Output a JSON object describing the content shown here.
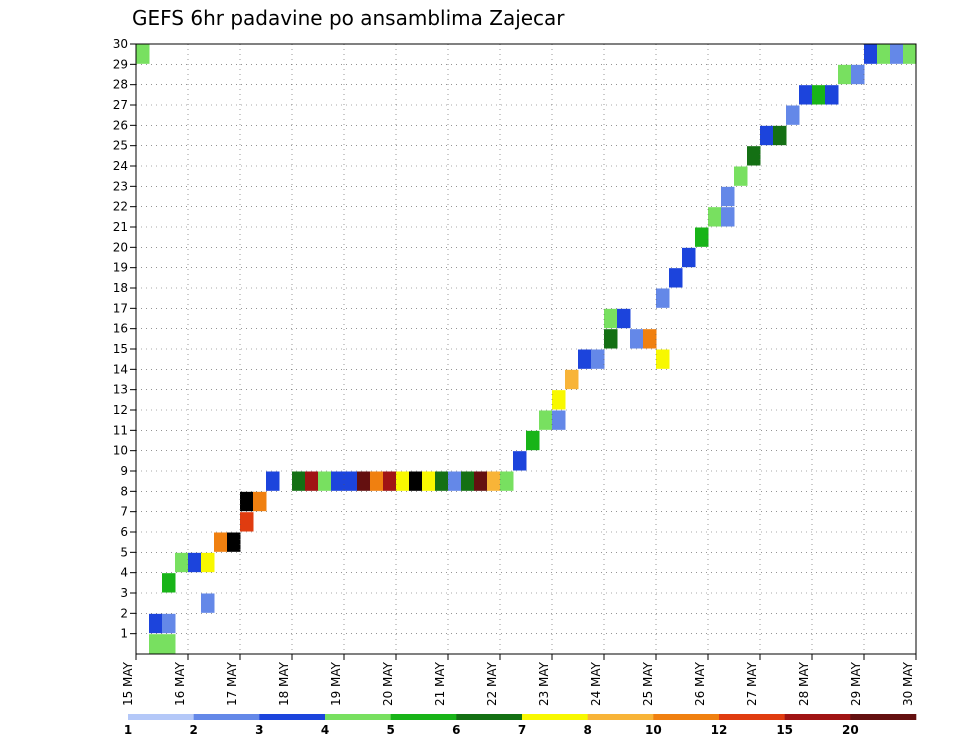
{
  "chart_data": {
    "type": "heatmap",
    "title": "GEFS 6hr padavine po ansamblima Zajecar",
    "xlabel": "",
    "ylabel": "",
    "x_tick_labels": [
      "15 MAY",
      "16 MAY",
      "17 MAY",
      "18 MAY",
      "19 MAY",
      "20 MAY",
      "21 MAY",
      "22 MAY",
      "23 MAY",
      "24 MAY",
      "25 MAY",
      "26 MAY",
      "27 MAY",
      "28 MAY",
      "29 MAY",
      "30 MAY"
    ],
    "y_tick_labels": [
      "1",
      "2",
      "3",
      "4",
      "5",
      "6",
      "7",
      "8",
      "9",
      "10",
      "11",
      "12",
      "13",
      "14",
      "15",
      "16",
      "17",
      "18",
      "19",
      "20",
      "21",
      "22",
      "23",
      "24",
      "25",
      "26",
      "27",
      "28",
      "29",
      "30"
    ],
    "x_range_steps": [
      0,
      60
    ],
    "y_range_members": [
      0,
      30
    ],
    "time_step_hours": 6,
    "colorbar": {
      "colors": [
        "#b4c8f8",
        "#6488e8",
        "#1c44dc",
        "#78e060",
        "#18b418",
        "#147014",
        "#f8f800",
        "#f8b438",
        "#f08010",
        "#e03c10",
        "#a01414",
        "#641010"
      ],
      "labels": [
        "1",
        "2",
        "3",
        "4",
        "5",
        "6",
        "7",
        "8",
        "10",
        "12",
        "15",
        "20"
      ]
    },
    "cells": [
      [
        0,
        29.5,
        3
      ],
      [
        1,
        0.5,
        3
      ],
      [
        1,
        1.5,
        2
      ],
      [
        2,
        0.5,
        3
      ],
      [
        2,
        1.5,
        1
      ],
      [
        2,
        3.5,
        4
      ],
      [
        3,
        4.5,
        3
      ],
      [
        4,
        4.5,
        2
      ],
      [
        5,
        4.5,
        6
      ],
      [
        5,
        2.5,
        1
      ],
      [
        6,
        5.5,
        8
      ],
      [
        7,
        5.5,
        12
      ],
      [
        8,
        6.5,
        9
      ],
      [
        8,
        7.5,
        12
      ],
      [
        9,
        7.5,
        8
      ],
      [
        10,
        8.5,
        2
      ],
      [
        12,
        8.5,
        5
      ],
      [
        13,
        8.5,
        10
      ],
      [
        14,
        8.5,
        3
      ],
      [
        15,
        8.5,
        2
      ],
      [
        16,
        8.5,
        2
      ],
      [
        17,
        8.5,
        11
      ],
      [
        18,
        8.5,
        8
      ],
      [
        19,
        8.5,
        10
      ],
      [
        20,
        8.5,
        6
      ],
      [
        21,
        8.5,
        12
      ],
      [
        22,
        8.5,
        6
      ],
      [
        23,
        8.5,
        5
      ],
      [
        24,
        8.5,
        1
      ],
      [
        25,
        8.5,
        5
      ],
      [
        26,
        8.5,
        11
      ],
      [
        27,
        8.5,
        7
      ],
      [
        28,
        8.5,
        3
      ],
      [
        29,
        9.5,
        2
      ],
      [
        30,
        10.5,
        4
      ],
      [
        31,
        11.5,
        3
      ],
      [
        32,
        11.5,
        1
      ],
      [
        32,
        12.5,
        6
      ],
      [
        33,
        13.5,
        7
      ],
      [
        34,
        14.5,
        2
      ],
      [
        35,
        14.5,
        1
      ],
      [
        36,
        15.5,
        5
      ],
      [
        36,
        16.5,
        3
      ],
      [
        37,
        16.5,
        2
      ],
      [
        38,
        15.5,
        1
      ],
      [
        39,
        15.5,
        8
      ],
      [
        40,
        14.5,
        6
      ],
      [
        40,
        17.5,
        1
      ],
      [
        41,
        18.5,
        2
      ],
      [
        42,
        19.5,
        2
      ],
      [
        43,
        20.5,
        4
      ],
      [
        44,
        21.5,
        3
      ],
      [
        45,
        21.5,
        1
      ],
      [
        45,
        22.5,
        1
      ],
      [
        46,
        23.5,
        3
      ],
      [
        47,
        24.5,
        5
      ],
      [
        48,
        25.5,
        2
      ],
      [
        49,
        25.5,
        5
      ],
      [
        50,
        26.5,
        1
      ],
      [
        51,
        27.5,
        2
      ],
      [
        52,
        27.5,
        4
      ],
      [
        53,
        27.5,
        2
      ],
      [
        54,
        28.5,
        3
      ],
      [
        55,
        28.5,
        1
      ],
      [
        56,
        29.5,
        2
      ],
      [
        57,
        29.5,
        3
      ],
      [
        58,
        29.5,
        1
      ],
      [
        59,
        29.5,
        3
      ]
    ]
  }
}
